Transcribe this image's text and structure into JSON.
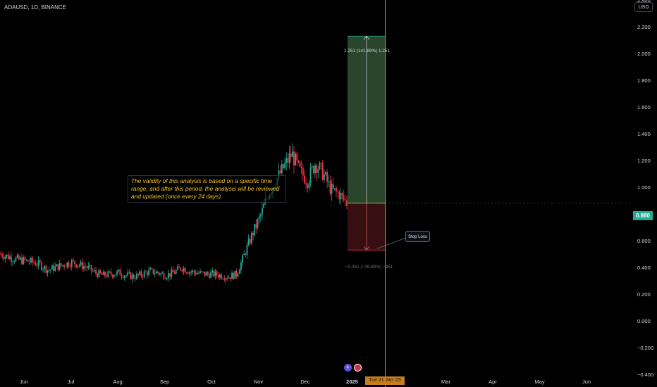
{
  "header": {
    "symbol_label": "ADAUSD, 1D, BINANCE",
    "currency": "USD"
  },
  "price_scale": {
    "ticks": [
      "2.400",
      "2.200",
      "2.000",
      "1.800",
      "1.600",
      "1.400",
      "1.200",
      "1.000",
      "0.800",
      "0.600",
      "0.400",
      "0.200",
      "0.000",
      "−0.200",
      "−0.400"
    ],
    "current_price": "0.880",
    "current_price_color": "#22ab94"
  },
  "time_scale": {
    "ticks": [
      "Jun",
      "Jul",
      "Aug",
      "Sep",
      "Oct",
      "Nov",
      "Dec",
      "2025",
      "Feb",
      "Mar",
      "Apr",
      "May",
      "Jun"
    ],
    "cursor_label": "Tue 21 Jan '25"
  },
  "annotations": {
    "note": "The validity of this analysis is based on a specific time range, and after this period, the analysis will be reviewed and updated (once every 24 days).",
    "stop_loss": "Stop Loss",
    "target_label": "1.251 (141.89%) 1,251",
    "stop_label": "−0.351 (−39.80%) −351"
  },
  "colors": {
    "up": "#22ab94",
    "down": "#f23645",
    "cursor": "#e08a1e",
    "target_fill": "#2b4a2e",
    "stop_fill": "#3a0f12"
  },
  "chart_data": {
    "type": "candlestick",
    "symbol": "ADAUSD",
    "interval": "1D",
    "exchange": "BINANCE",
    "ylim": [
      -0.4,
      2.4
    ],
    "x_axis_labels": [
      "Jun",
      "Jul",
      "Aug",
      "Sep",
      "Oct",
      "Nov",
      "Dec",
      "2025",
      "Feb",
      "Mar",
      "Apr",
      "May",
      "Jun"
    ],
    "approx_closes": [
      0.5,
      0.48,
      0.46,
      0.45,
      0.44,
      0.42,
      0.38,
      0.4,
      0.42,
      0.44,
      0.42,
      0.4,
      0.36,
      0.34,
      0.35,
      0.36,
      0.34,
      0.33,
      0.35,
      0.37,
      0.36,
      0.34,
      0.36,
      0.4,
      0.37,
      0.36,
      0.35,
      0.35,
      0.34,
      0.33,
      0.35,
      0.5,
      0.65,
      0.78,
      0.95,
      1.05,
      1.15,
      1.25,
      1.12,
      1.05,
      1.18,
      1.1,
      0.98,
      0.95,
      0.88
    ],
    "position": {
      "entry": 0.88,
      "target": 2.13,
      "stop": 0.53,
      "target_change": "1.251 (141.89%)",
      "stop_change": "-0.351 (-39.80%)"
    },
    "current_price": 0.88
  }
}
